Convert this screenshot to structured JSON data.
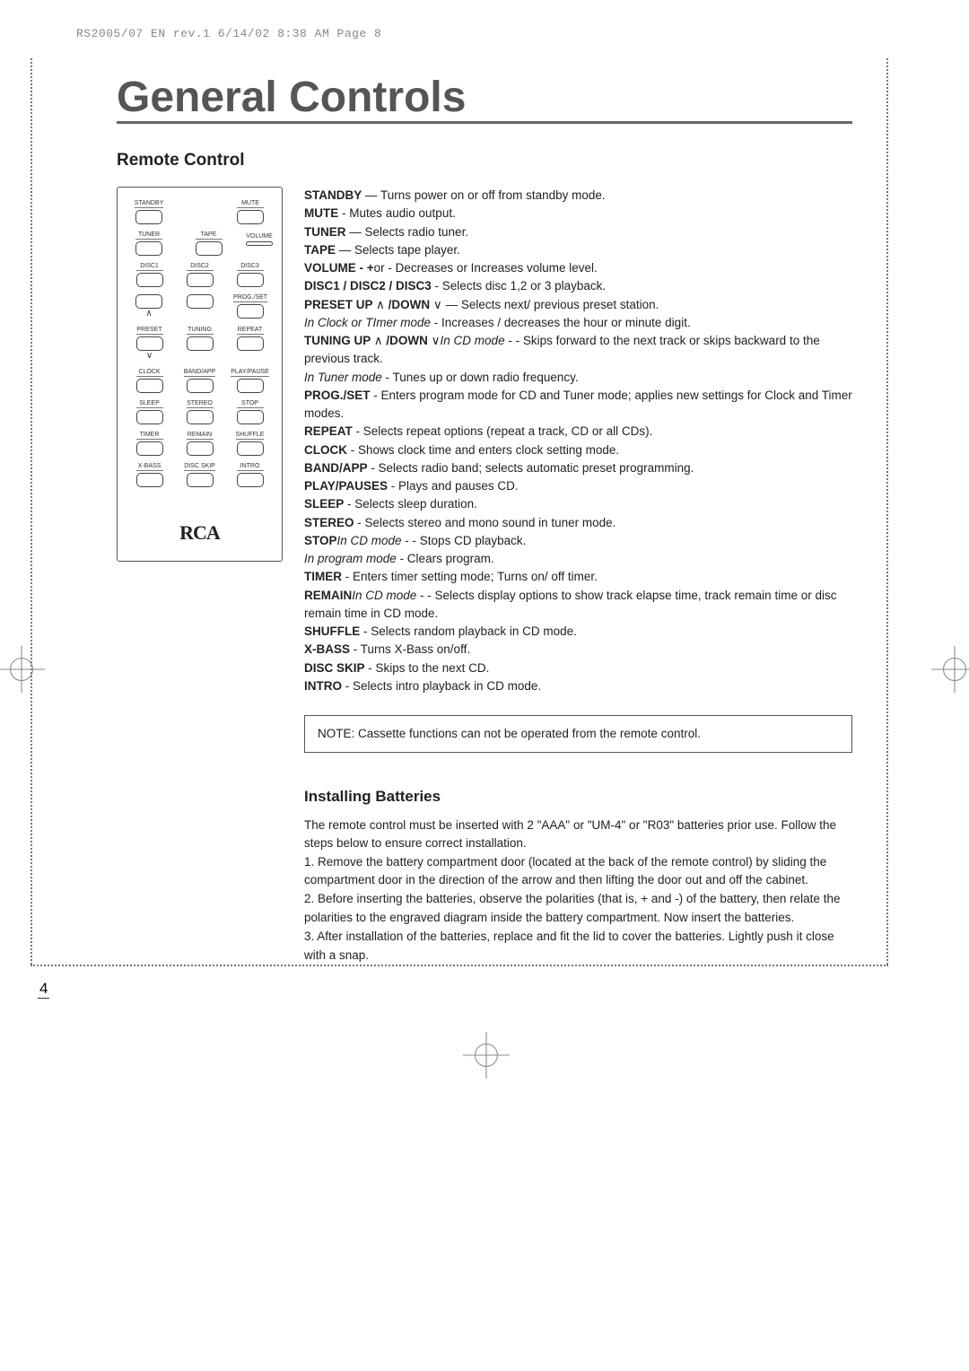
{
  "header": {
    "job_line": "RS2005/07 EN rev.1  6/14/02  8:38 AM  Page 8"
  },
  "title": "General Controls",
  "section_title": "Remote Control",
  "remote": {
    "logo": "RCA",
    "row1": [
      "STANDBY",
      "MUTE"
    ],
    "row2": [
      "TUNER",
      "TAPE"
    ],
    "vol_label": "VOLUME",
    "row3": [
      "DISC1",
      "DISC2",
      "DISC3"
    ],
    "row4_right": "PROG./SET",
    "row5": [
      "PRESET",
      "TUNING",
      "REPEAT"
    ],
    "row6": [
      "CLOCK",
      "BAND/APP",
      "PLAY/PAUSE"
    ],
    "row7": [
      "SLEEP",
      "STEREO",
      "STOP"
    ],
    "row8": [
      "TIMER",
      "REMAIN",
      "SHUFFLE"
    ],
    "row9": [
      "X-BASS",
      "DISC SKIP",
      "INTRO"
    ]
  },
  "descriptions": [
    {
      "b": "STANDBY",
      "t": " — Turns power on or off from standby mode."
    },
    {
      "b": "MUTE",
      "t": " - Mutes audio output."
    },
    {
      "b": "TUNER",
      "t": " — Selects radio tuner."
    },
    {
      "b": "TAPE",
      "t": " — Selects tape player."
    },
    {
      "b": "VOLUME - ",
      "t": "or ",
      "b2": "+",
      "t2": " - Decreases or Increases volume level."
    },
    {
      "b": "DISC1 / DISC2 / DISC3",
      "t": " - Selects disc 1,2 or 3 playback."
    },
    {
      "b": "PRESET UP ",
      "sym": "∧",
      "b2": "  /DOWN ",
      "sym2": "∨",
      "t": "  — Selects next/ previous preset station."
    },
    {
      "i": "In Clock or TImer mode",
      "t": " - Increases / decreases the hour or minute digit."
    },
    {
      "b": "TUNING UP ",
      "sym": "∧",
      "b2": "  /DOWN ",
      "sym2": "∨",
      "t": "   - ",
      "i": "In CD mode",
      "t2": " - Skips forward to the next track or skips backward to the previous track."
    },
    {
      "i": "In Tuner mode",
      "t": " - Tunes up or down radio frequency."
    },
    {
      "b": "PROG./SET",
      "t": " - Enters  program mode for CD and Tuner mode; applies new settings for Clock and Timer modes."
    },
    {
      "b": "REPEAT",
      "t": " - Selects repeat options (repeat a track, CD or all CDs)."
    },
    {
      "b": "CLOCK",
      "t": " - Shows clock time and enters clock setting mode."
    },
    {
      "b": "BAND/APP",
      "t": " - Selects radio band; selects  automatic preset programming."
    },
    {
      "b": "PLAY/PAUSES",
      "t": " - Plays and pauses CD."
    },
    {
      "b": "SLEEP",
      "t": " - Selects sleep duration."
    },
    {
      "b": "STEREO",
      "t": " - Selects stereo and mono sound in tuner mode."
    },
    {
      "b": "STOP",
      "t": "  -  ",
      "i": "In CD mode",
      "t2": " - Stops CD playback."
    },
    {
      "i": "In program mode",
      "t": " - Clears program."
    },
    {
      "b": "TIMER",
      "t": " - Enters timer setting mode; Turns on/ off timer."
    },
    {
      "b": "REMAIN",
      "t": " - ",
      "i": "In CD mode",
      "t2": " - Selects  display options to show track elapse time, track remain time or disc remain time in CD mode."
    },
    {
      "b": "SHUFFLE",
      "t": " - Selects random playback in CD mode."
    },
    {
      "b": "X-BASS",
      "t": " - Turns X-Bass on/off."
    },
    {
      "b": "DISC SKIP",
      "t": " - Skips to the next CD."
    },
    {
      "b": "INTRO",
      "t": " - Selects intro playback in CD mode."
    }
  ],
  "note": "NOTE:   Cassette functions can not be operated from the remote control.",
  "batteries": {
    "heading": "Installing Batteries",
    "intro": "The remote control must be inserted with 2 \"AAA\" or \"UM-4\" or \"R03\" batteries prior use.  Follow the steps below to ensure correct installation.",
    "steps": [
      "1. Remove the battery compartment door (located at the back of the remote control) by sliding the compartment door in the direction of the arrow and then lifting the door out and off the cabinet.",
      "2. Before inserting the batteries, observe the polarities (that is, + and -) of the battery, then relate the polarities to the engraved diagram inside the battery compartment.  Now insert the batteries.",
      "3. After installation of the batteries, replace and fit the lid to cover the batteries.  Lightly push it close with a snap."
    ]
  },
  "page_number": "4",
  "colors": {
    "title": "#555555",
    "rule": "#666666",
    "text": "#222222",
    "dotted": "#777777",
    "crop": "#888888"
  }
}
